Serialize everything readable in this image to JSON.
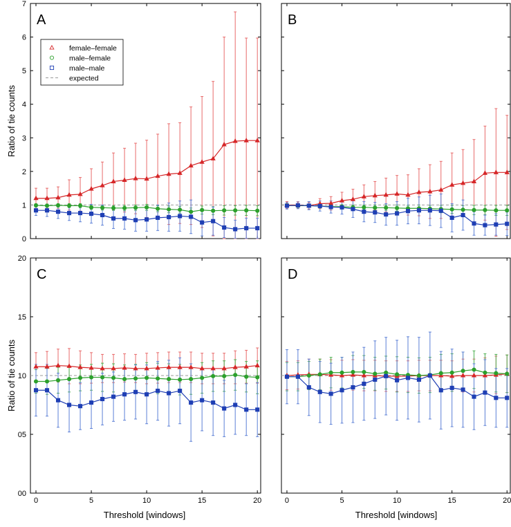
{
  "figure": {
    "ylabel_top": "Ratio of tie counts",
    "ylabel_bottom": "Ratio of tie counts",
    "xlabel_left": "Threshold [windows]",
    "xlabel_right": "Threshold [windows]"
  },
  "colors": {
    "female-female": "#d62728",
    "male-female": "#2ca02c",
    "male-male": "#1f3fb4",
    "expected": "#9a9a9a",
    "ff_err": "#e86a6a",
    "mf_err": "#4caf50",
    "mm_err": "#5b7fd6"
  },
  "chart_data": [
    {
      "type": "line",
      "panel_label": "A",
      "xlabel": "",
      "ylabel": "Ratio of tie counts",
      "xlim": [
        -0.5,
        20.3
      ],
      "ylim": [
        0,
        7
      ],
      "yticks": [
        "0",
        "1",
        "2",
        "3",
        "4",
        "5",
        "6",
        "7"
      ],
      "xticks": [],
      "legend": {
        "placement": "upper-left",
        "entries": [
          "female–female",
          "male–female",
          "male–male",
          "expected"
        ]
      },
      "expected": 1,
      "x": [
        0,
        1,
        2,
        3,
        4,
        5,
        6,
        7,
        8,
        9,
        10,
        11,
        12,
        13,
        14,
        15,
        16,
        17,
        18,
        19,
        20
      ],
      "series": [
        {
          "name": "female–female",
          "values": [
            1.2,
            1.2,
            1.22,
            1.3,
            1.32,
            1.48,
            1.58,
            1.7,
            1.74,
            1.79,
            1.78,
            1.86,
            1.92,
            1.95,
            2.17,
            2.28,
            2.38,
            2.8,
            2.9,
            2.92,
            2.92
          ],
          "err": [
            0.3,
            0.3,
            0.32,
            0.45,
            0.5,
            0.6,
            0.7,
            0.85,
            0.95,
            1.05,
            1.15,
            1.25,
            1.5,
            1.5,
            1.75,
            1.95,
            2.3,
            3.2,
            3.85,
            3.05,
            3.05
          ]
        },
        {
          "name": "male–female",
          "values": [
            0.99,
            0.98,
            0.99,
            0.98,
            0.98,
            0.93,
            0.92,
            0.91,
            0.91,
            0.92,
            0.93,
            0.89,
            0.87,
            0.86,
            0.8,
            0.85,
            0.83,
            0.84,
            0.84,
            0.84,
            0.83
          ],
          "err": [
            0.05,
            0.05,
            0.05,
            0.06,
            0.06,
            0.06,
            0.07,
            0.07,
            0.08,
            0.08,
            0.09,
            0.09,
            0.1,
            0.1,
            0.11,
            0.12,
            0.12,
            0.14,
            0.14,
            0.15,
            0.15
          ]
        },
        {
          "name": "male–male",
          "values": [
            0.84,
            0.84,
            0.8,
            0.76,
            0.76,
            0.74,
            0.7,
            0.6,
            0.6,
            0.55,
            0.57,
            0.62,
            0.64,
            0.67,
            0.65,
            0.48,
            0.52,
            0.33,
            0.28,
            0.31,
            0.31
          ],
          "err": [
            0.15,
            0.18,
            0.2,
            0.22,
            0.26,
            0.28,
            0.3,
            0.3,
            0.32,
            0.33,
            0.35,
            0.38,
            0.42,
            0.45,
            0.5,
            0.4,
            0.42,
            0.3,
            0.27,
            0.3,
            0.3
          ]
        }
      ]
    },
    {
      "type": "line",
      "panel_label": "B",
      "xlabel": "",
      "ylabel": "",
      "xlim": [
        -0.5,
        20.3
      ],
      "ylim": [
        0,
        7
      ],
      "yticks": [],
      "xticks": [],
      "expected": 1,
      "x": [
        0,
        1,
        2,
        3,
        4,
        5,
        6,
        7,
        8,
        9,
        10,
        11,
        12,
        13,
        14,
        15,
        16,
        17,
        18,
        19,
        20
      ],
      "series": [
        {
          "name": "female–female",
          "values": [
            1.0,
            1.0,
            0.98,
            1.04,
            1.05,
            1.13,
            1.17,
            1.25,
            1.28,
            1.3,
            1.33,
            1.3,
            1.38,
            1.4,
            1.45,
            1.6,
            1.65,
            1.7,
            1.95,
            1.97,
            1.97
          ],
          "err": [
            0.1,
            0.1,
            0.1,
            0.15,
            0.2,
            0.25,
            0.3,
            0.35,
            0.42,
            0.5,
            0.55,
            0.6,
            0.7,
            0.8,
            0.85,
            0.95,
            1.0,
            1.25,
            1.4,
            1.9,
            1.7
          ]
        },
        {
          "name": "male–female",
          "values": [
            0.99,
            0.98,
            0.98,
            0.97,
            0.95,
            0.95,
            0.93,
            0.93,
            0.92,
            0.92,
            0.91,
            0.9,
            0.9,
            0.89,
            0.88,
            0.87,
            0.86,
            0.85,
            0.85,
            0.84,
            0.84
          ],
          "err": [
            0.05,
            0.05,
            0.05,
            0.06,
            0.06,
            0.06,
            0.07,
            0.07,
            0.08,
            0.08,
            0.09,
            0.09,
            0.1,
            0.1,
            0.11,
            0.12,
            0.12,
            0.14,
            0.14,
            0.15,
            0.15
          ]
        },
        {
          "name": "male–male",
          "values": [
            0.98,
            0.99,
            0.98,
            0.97,
            0.94,
            0.93,
            0.88,
            0.8,
            0.78,
            0.72,
            0.75,
            0.82,
            0.84,
            0.84,
            0.83,
            0.62,
            0.7,
            0.45,
            0.4,
            0.42,
            0.44
          ],
          "err": [
            0.1,
            0.1,
            0.12,
            0.15,
            0.18,
            0.2,
            0.25,
            0.3,
            0.3,
            0.32,
            0.35,
            0.38,
            0.4,
            0.45,
            0.5,
            0.42,
            0.45,
            0.35,
            0.3,
            0.32,
            0.35
          ]
        }
      ]
    },
    {
      "type": "line",
      "panel_label": "C",
      "xlabel": "Threshold [windows]",
      "ylabel": "Ratio of tie counts",
      "xlim": [
        -0.5,
        20.3
      ],
      "ylim": [
        0,
        20
      ],
      "yticks": [
        "00",
        "05",
        "10",
        "15",
        "20"
      ],
      "xticks": [
        "0",
        "5",
        "10",
        "15",
        "20"
      ],
      "expected": 10,
      "x": [
        0,
        1,
        2,
        3,
        4,
        5,
        6,
        7,
        8,
        9,
        10,
        11,
        12,
        13,
        14,
        15,
        16,
        17,
        18,
        19,
        20
      ],
      "series": [
        {
          "name": "female–female",
          "values": [
            10.75,
            10.75,
            10.85,
            10.8,
            10.7,
            10.65,
            10.6,
            10.6,
            10.65,
            10.6,
            10.6,
            10.65,
            10.7,
            10.7,
            10.7,
            10.6,
            10.6,
            10.6,
            10.7,
            10.75,
            10.85
          ],
          "err": [
            1.2,
            1.3,
            1.4,
            1.5,
            1.4,
            1.3,
            1.2,
            1.2,
            1.2,
            1.2,
            1.3,
            1.3,
            1.3,
            1.3,
            1.3,
            1.3,
            1.3,
            1.3,
            1.4,
            1.4,
            1.5
          ]
        },
        {
          "name": "male–female",
          "values": [
            9.5,
            9.5,
            9.6,
            9.7,
            9.8,
            9.85,
            9.85,
            9.8,
            9.7,
            9.75,
            9.8,
            9.75,
            9.7,
            9.65,
            9.7,
            9.8,
            9.95,
            9.95,
            10.05,
            9.9,
            9.85
          ],
          "err": [
            1.0,
            1.1,
            1.1,
            1.1,
            1.1,
            1.1,
            1.2,
            1.2,
            1.2,
            1.2,
            1.3,
            1.3,
            1.3,
            1.3,
            1.3,
            1.3,
            1.3,
            1.3,
            1.3,
            1.3,
            1.4
          ]
        },
        {
          "name": "male–male",
          "values": [
            8.75,
            8.75,
            7.9,
            7.5,
            7.4,
            7.7,
            8.0,
            8.2,
            8.4,
            8.6,
            8.4,
            8.7,
            8.5,
            8.7,
            7.7,
            7.9,
            7.7,
            7.2,
            7.5,
            7.1,
            7.1
          ],
          "err": [
            2.2,
            2.2,
            2.3,
            2.3,
            2.0,
            2.2,
            2.2,
            2.1,
            2.2,
            2.3,
            2.5,
            2.5,
            2.8,
            2.8,
            3.3,
            2.6,
            2.8,
            2.4,
            2.5,
            2.2,
            2.3
          ]
        }
      ]
    },
    {
      "type": "line",
      "panel_label": "D",
      "xlabel": "Threshold [windows]",
      "ylabel": "",
      "xlim": [
        -0.5,
        20.3
      ],
      "ylim": [
        0,
        20
      ],
      "yticks": [],
      "xticks": [
        "0",
        "5",
        "10",
        "15",
        "20"
      ],
      "expected": 10,
      "x": [
        0,
        1,
        2,
        3,
        4,
        5,
        6,
        7,
        8,
        9,
        10,
        11,
        12,
        13,
        14,
        15,
        16,
        17,
        18,
        19,
        20
      ],
      "series": [
        {
          "name": "female–female",
          "values": [
            10.0,
            10.05,
            10.1,
            10.1,
            10.05,
            10.0,
            10.05,
            10.0,
            10.0,
            9.95,
            9.95,
            9.95,
            10.0,
            10.0,
            10.0,
            9.95,
            10.0,
            10.0,
            10.0,
            10.05,
            10.15
          ],
          "err": [
            1.2,
            1.2,
            1.3,
            1.3,
            1.3,
            1.3,
            1.3,
            1.3,
            1.3,
            1.3,
            1.3,
            1.3,
            1.3,
            1.3,
            1.3,
            1.3,
            1.4,
            1.4,
            1.5,
            1.6,
            1.6
          ]
        },
        {
          "name": "male–female",
          "values": [
            9.9,
            9.9,
            10.0,
            10.1,
            10.25,
            10.25,
            10.3,
            10.3,
            10.15,
            10.25,
            10.1,
            10.05,
            10.0,
            10.05,
            10.2,
            10.25,
            10.4,
            10.5,
            10.25,
            10.2,
            10.15
          ],
          "err": [
            1.2,
            1.2,
            1.2,
            1.3,
            1.3,
            1.3,
            1.4,
            1.4,
            1.4,
            1.4,
            1.5,
            1.5,
            1.5,
            1.5,
            1.6,
            1.6,
            1.6,
            1.6,
            1.6,
            1.6,
            1.6
          ]
        },
        {
          "name": "male–male",
          "values": [
            9.9,
            9.9,
            9.0,
            8.6,
            8.45,
            8.75,
            9.0,
            9.3,
            9.65,
            9.95,
            9.6,
            9.8,
            9.65,
            10.0,
            8.75,
            8.95,
            8.8,
            8.2,
            8.55,
            8.1,
            8.1
          ],
          "err": [
            2.3,
            2.3,
            2.4,
            2.6,
            2.6,
            2.8,
            3.0,
            3.1,
            3.3,
            3.3,
            3.4,
            3.5,
            3.6,
            3.7,
            3.3,
            3.3,
            3.2,
            2.8,
            2.8,
            2.5,
            2.5
          ]
        }
      ]
    }
  ]
}
